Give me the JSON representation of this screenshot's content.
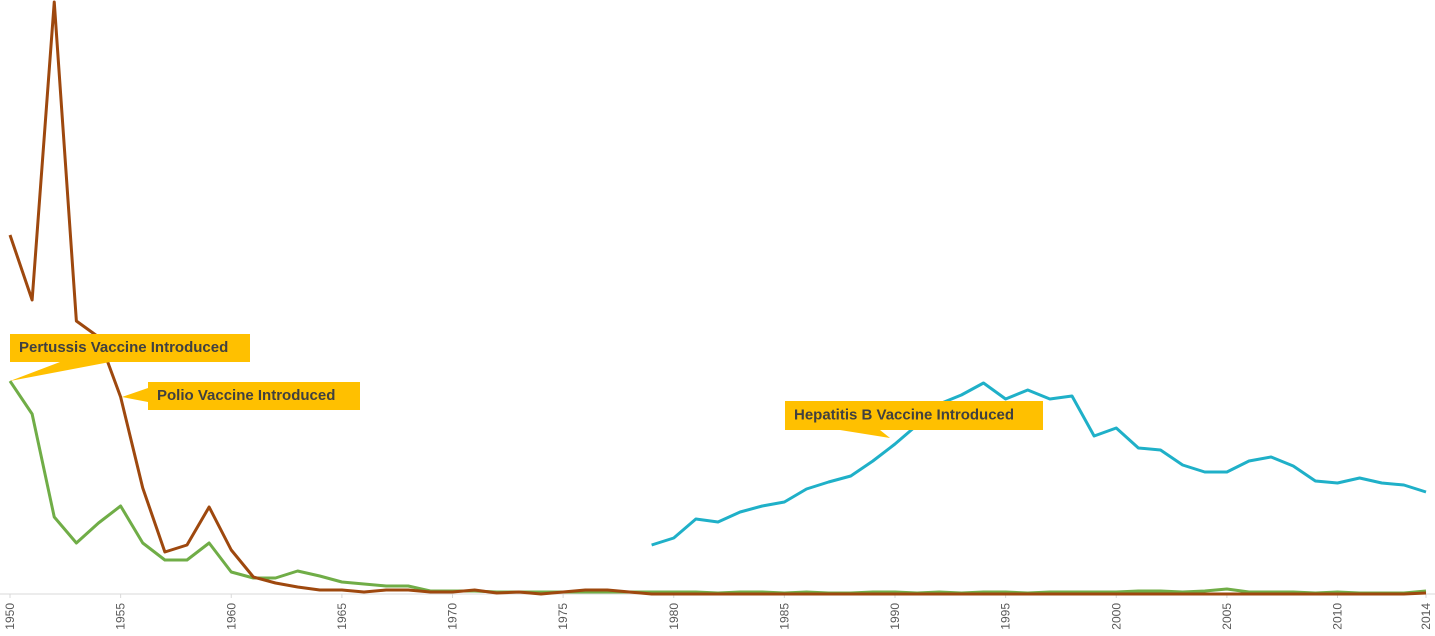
{
  "chart_data": {
    "type": "line",
    "x": [
      1950,
      1951,
      1952,
      1953,
      1954,
      1955,
      1956,
      1957,
      1958,
      1959,
      1960,
      1961,
      1962,
      1963,
      1964,
      1965,
      1966,
      1967,
      1968,
      1969,
      1970,
      1971,
      1972,
      1973,
      1974,
      1975,
      1976,
      1977,
      1978,
      1979,
      1980,
      1981,
      1982,
      1983,
      1984,
      1985,
      1986,
      1987,
      1988,
      1989,
      1990,
      1991,
      1992,
      1993,
      1994,
      1995,
      1996,
      1997,
      1998,
      1999,
      2000,
      2001,
      2002,
      2003,
      2004,
      2005,
      2006,
      2007,
      2008,
      2009,
      2010,
      2011,
      2012,
      2013,
      2014
    ],
    "xlim": [
      1950,
      2014
    ],
    "xticks": [
      1950,
      1955,
      1960,
      1965,
      1970,
      1975,
      1980,
      1985,
      1990,
      1995,
      2000,
      2005,
      2010,
      2014
    ],
    "ylim": [
      0,
      594
    ],
    "series": [
      {
        "color": "#70ad47",
        "values": [
          213,
          180,
          77,
          51,
          71,
          88,
          51,
          34,
          34,
          51,
          22,
          16,
          16,
          23,
          18,
          12,
          10,
          8,
          8,
          3,
          3,
          3,
          2,
          2,
          2,
          2,
          2,
          2,
          2,
          2,
          2,
          2,
          1,
          2,
          2,
          1,
          2,
          1,
          1,
          2,
          2,
          1,
          2,
          1,
          2,
          2,
          1,
          2,
          2,
          2,
          2,
          3,
          3,
          2,
          3,
          5,
          2,
          2,
          2,
          1,
          2,
          1,
          1,
          1,
          3
        ]
      },
      {
        "color": "#9e480e",
        "values": [
          359,
          294,
          592,
          273,
          257,
          197,
          106,
          42,
          49,
          87,
          44,
          17,
          11,
          7,
          4,
          4,
          2,
          4,
          4,
          2,
          2,
          4,
          1,
          2,
          0,
          2,
          4,
          4,
          2,
          0,
          0,
          0,
          0,
          0,
          0,
          0,
          0,
          0,
          0,
          0,
          0,
          0,
          0,
          0,
          0,
          0,
          0,
          0,
          0,
          0,
          0,
          0,
          0,
          0,
          0,
          0,
          0,
          0,
          0,
          0,
          0,
          0,
          0,
          0,
          1
        ]
      },
      {
        "color": "#1fb0c8",
        "values": [
          null,
          null,
          null,
          null,
          null,
          null,
          null,
          null,
          null,
          null,
          null,
          null,
          null,
          null,
          null,
          null,
          null,
          null,
          null,
          null,
          null,
          null,
          null,
          null,
          null,
          null,
          null,
          null,
          null,
          49,
          56,
          75,
          72,
          82,
          88,
          92,
          105,
          112,
          118,
          133,
          150,
          169,
          190,
          199,
          211,
          195,
          204,
          195,
          198,
          158,
          166,
          146,
          144,
          129,
          122,
          122,
          133,
          137,
          128,
          113,
          111,
          116,
          111,
          109,
          102
        ]
      }
    ],
    "annotations": [
      "Pertussis Vaccine Introduced",
      "Polio Vaccine Introduced",
      "Hepatitis B Vaccine Introduced"
    ]
  }
}
